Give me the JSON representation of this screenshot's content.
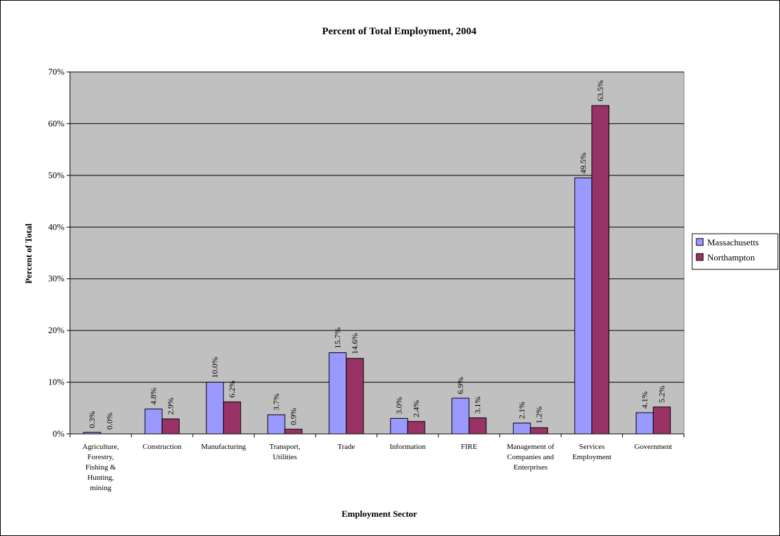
{
  "chart_data": {
    "type": "bar",
    "title": "Percent of Total Employment, 2004",
    "xlabel": "Employment Sector",
    "ylabel": "Percent of Total",
    "ylim": [
      0,
      70
    ],
    "yticks": [
      "0%",
      "10%",
      "20%",
      "30%",
      "40%",
      "50%",
      "60%",
      "70%"
    ],
    "grid": true,
    "legend_position": "right",
    "categories": [
      [
        "Agriculture,",
        "Forestry,",
        "Fishing &",
        "Hunting,",
        "mining"
      ],
      [
        "Construction"
      ],
      [
        "Manufacturing"
      ],
      [
        "Transport,",
        "Utilities"
      ],
      [
        "Trade"
      ],
      [
        "Information"
      ],
      [
        "FIRE"
      ],
      [
        "Management of",
        "Companies and",
        "Enterprises"
      ],
      [
        "Services",
        "Employment"
      ],
      [
        "Government"
      ]
    ],
    "series": [
      {
        "name": "Massachusetts",
        "color": "#9999ff",
        "values": [
          0.3,
          4.8,
          10.0,
          3.7,
          15.7,
          3.0,
          6.9,
          2.1,
          49.5,
          4.1
        ],
        "labels": [
          "0.3%",
          "4.8%",
          "10.0%",
          "3.7%",
          "15.7%",
          "3.0%",
          "6.9%",
          "2.1%",
          "49.5%",
          "4.1%"
        ]
      },
      {
        "name": "Northampton",
        "color": "#993366",
        "values": [
          0.0,
          2.9,
          6.2,
          0.9,
          14.6,
          2.4,
          3.1,
          1.2,
          63.5,
          5.2
        ],
        "labels": [
          "0.0%",
          "2.9%",
          "6.2%",
          "0.9%",
          "14.6%",
          "2.4%",
          "3.1%",
          "1.2%",
          "63.5%",
          "5.2%"
        ]
      }
    ],
    "plot_background": "#c0c0c0"
  }
}
